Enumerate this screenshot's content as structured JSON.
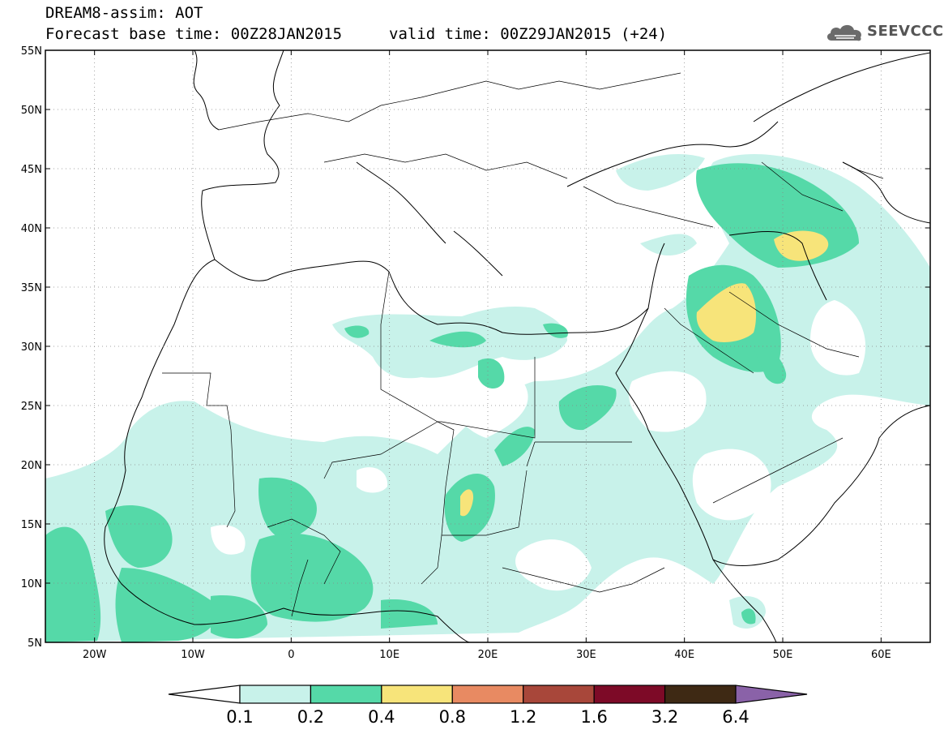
{
  "header": {
    "title": "DREAM8-assim: AOT",
    "base_time": "Forecast base time: 00Z28JAN2015",
    "valid_time": "valid time: 00Z29JAN2015 (+24)",
    "logo_text": "SEEVCCC"
  },
  "map": {
    "lon_range": [
      -25,
      65
    ],
    "lat_range": [
      5,
      55
    ],
    "lat_labels": [
      "55N",
      "50N",
      "45N",
      "40N",
      "35N",
      "30N",
      "25N",
      "20N",
      "15N",
      "10N",
      "5N"
    ],
    "lon_labels": [
      "20W",
      "10W",
      "0",
      "10E",
      "20E",
      "30E",
      "40E",
      "50E",
      "60E"
    ],
    "grid": true
  },
  "colorbar": {
    "levels": [
      "0.1",
      "0.2",
      "0.4",
      "0.8",
      "1.2",
      "1.6",
      "3.2",
      "6.4"
    ],
    "colors": [
      "#ffffff",
      "#c8f2ea",
      "#55d9a8",
      "#f7e47a",
      "#e88a62",
      "#a8473a",
      "#7d0a27",
      "#3e2914",
      "#8a62a8"
    ]
  }
}
